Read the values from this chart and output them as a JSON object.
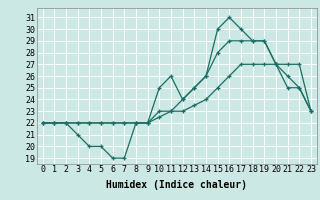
{
  "title": "",
  "xlabel": "Humidex (Indice chaleur)",
  "bg_color": "#cce8e4",
  "line_color": "#1a6e64",
  "grid_color": "#ffffff",
  "xlim": [
    -0.5,
    23.5
  ],
  "ylim": [
    18.5,
    31.8
  ],
  "xticks": [
    0,
    1,
    2,
    3,
    4,
    5,
    6,
    7,
    8,
    9,
    10,
    11,
    12,
    13,
    14,
    15,
    16,
    17,
    18,
    19,
    20,
    21,
    22,
    23
  ],
  "yticks": [
    19,
    20,
    21,
    22,
    23,
    24,
    25,
    26,
    27,
    28,
    29,
    30,
    31
  ],
  "series": [
    {
      "x": [
        0,
        1,
        2,
        3,
        4,
        5,
        6,
        7,
        8,
        9,
        10,
        11,
        12,
        13,
        14,
        15,
        16,
        17,
        18,
        19,
        20,
        21,
        22,
        23
      ],
      "y": [
        22,
        22,
        22,
        21,
        20,
        20,
        19,
        19,
        22,
        22,
        25,
        26,
        24,
        25,
        26,
        30,
        31,
        30,
        29,
        29,
        27,
        25,
        25,
        23
      ]
    },
    {
      "x": [
        0,
        1,
        2,
        3,
        4,
        5,
        6,
        7,
        8,
        9,
        10,
        11,
        12,
        13,
        14,
        15,
        16,
        17,
        18,
        19,
        20,
        21,
        22,
        23
      ],
      "y": [
        22,
        22,
        22,
        22,
        22,
        22,
        22,
        22,
        22,
        22,
        22.5,
        23,
        23,
        23.5,
        24,
        25,
        26,
        27,
        27,
        27,
        27,
        27,
        27,
        23
      ]
    },
    {
      "x": [
        0,
        1,
        2,
        3,
        4,
        5,
        6,
        7,
        8,
        9,
        10,
        11,
        12,
        13,
        14,
        15,
        16,
        17,
        18,
        19,
        20,
        21,
        22,
        23
      ],
      "y": [
        22,
        22,
        22,
        22,
        22,
        22,
        22,
        22,
        22,
        22,
        23,
        23,
        24,
        25,
        26,
        28,
        29,
        29,
        29,
        29,
        27,
        26,
        25,
        23
      ]
    }
  ],
  "font_size": 6,
  "marker": "+",
  "marker_size": 3.5,
  "linewidth": 0.9,
  "xlabel_fontsize": 7
}
